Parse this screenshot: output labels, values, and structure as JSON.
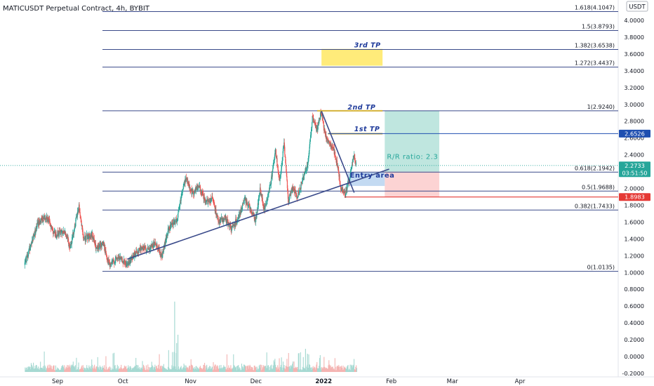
{
  "header": {
    "symbol_title": "MATICUSDT Perpetual Contract, 4h, BYBIT",
    "currency_badge": "USDT"
  },
  "colors": {
    "candle_up": "#26a69a",
    "candle_down": "#ef5350",
    "fib_line": "#3a4a8a",
    "target_label": "#1e3a9a",
    "trendline": "#3a4a8a",
    "tp_zone": "#ffeb7a",
    "gold_line": "#d4b23a",
    "profit_zone": "#bfe6df",
    "loss_zone": "#fcd3d3",
    "price_badge_current": "#26a69a",
    "price_badge_blue": "#1f4fb0",
    "price_badge_red": "#e53935"
  },
  "chart_data": {
    "type": "candlestick",
    "title": "MATICUSDT Perpetual Contract, 4h, BYBIT",
    "price_axis": {
      "ylim": [
        -0.25,
        4.2
      ],
      "ticks": [
        "4.0000",
        "3.8000",
        "3.6000",
        "3.4000",
        "3.2000",
        "3.0000",
        "2.8000",
        "2.6000",
        "2.4000",
        "2.2000",
        "2.0000",
        "1.8000",
        "1.6000",
        "1.4000",
        "1.2000",
        "1.0000",
        "0.8000",
        "0.6000",
        "0.4000",
        "0.2000",
        "0.0000",
        "-0.2000"
      ]
    },
    "time_axis": {
      "ticks": [
        {
          "label": "Sep",
          "t": 15
        },
        {
          "label": "Oct",
          "t": 45
        },
        {
          "label": "Nov",
          "t": 76
        },
        {
          "label": "Dec",
          "t": 106
        },
        {
          "label": "2022",
          "t": 137
        },
        {
          "label": "Feb",
          "t": 168
        },
        {
          "label": "Mar",
          "t": 196
        },
        {
          "label": "Apr",
          "t": 227
        }
      ]
    },
    "price_path": [
      [
        0,
        1.09
      ],
      [
        6,
        1.58
      ],
      [
        10,
        1.67
      ],
      [
        14,
        1.45
      ],
      [
        18,
        1.5
      ],
      [
        21,
        1.31
      ],
      [
        24,
        1.66
      ],
      [
        25,
        1.79
      ],
      [
        27,
        1.4
      ],
      [
        31,
        1.45
      ],
      [
        33,
        1.27
      ],
      [
        36,
        1.35
      ],
      [
        39,
        1.08
      ],
      [
        43,
        1.18
      ],
      [
        47,
        1.09
      ],
      [
        51,
        1.23
      ],
      [
        54,
        1.3
      ],
      [
        57,
        1.26
      ],
      [
        60,
        1.36
      ],
      [
        63,
        1.19
      ],
      [
        66,
        1.51
      ],
      [
        70,
        1.63
      ],
      [
        72,
        1.93
      ],
      [
        74,
        2.13
      ],
      [
        77,
        1.94
      ],
      [
        80,
        2.03
      ],
      [
        83,
        1.83
      ],
      [
        86,
        1.88
      ],
      [
        89,
        1.61
      ],
      [
        92,
        1.64
      ],
      [
        95,
        1.52
      ],
      [
        99,
        1.71
      ],
      [
        101,
        1.87
      ],
      [
        103,
        1.79
      ],
      [
        106,
        1.62
      ],
      [
        108,
        1.98
      ],
      [
        110,
        1.74
      ],
      [
        113,
        2.08
      ],
      [
        115,
        2.46
      ],
      [
        117,
        2.06
      ],
      [
        119,
        2.56
      ],
      [
        121,
        1.84
      ],
      [
        123,
        2.02
      ],
      [
        125,
        1.9
      ],
      [
        128,
        2.14
      ],
      [
        130,
        2.31
      ],
      [
        132,
        2.84
      ],
      [
        134,
        2.69
      ],
      [
        136,
        2.91
      ],
      [
        138,
        2.61
      ],
      [
        140,
        2.54
      ],
      [
        142,
        2.44
      ],
      [
        144,
        2.2
      ],
      [
        145,
        2.0
      ],
      [
        147,
        1.95
      ],
      [
        149,
        2.09
      ],
      [
        150,
        2.28
      ],
      [
        151,
        2.39
      ],
      [
        152,
        2.28
      ]
    ],
    "volume_scale_label_units": "price-axis",
    "fibonacci": [
      {
        "label": "1.618(4.1047)",
        "level": 4.1047
      },
      {
        "label": "1.5(3.8793)",
        "level": 3.8793
      },
      {
        "label": "1.382(3.6538)",
        "level": 3.6538
      },
      {
        "label": "1.272(3.4437)",
        "level": 3.4437
      },
      {
        "label": "1(2.9240)",
        "level": 2.924
      },
      {
        "label": "0.618(2.1942)",
        "level": 2.1942
      },
      {
        "label": "0.5(1.9688)",
        "level": 1.9688
      },
      {
        "label": "0.382(1.7433)",
        "level": 1.7433
      },
      {
        "label": "0(1.0135)",
        "level": 1.0135
      }
    ],
    "annotations": [
      {
        "label": "3rd TP",
        "price": 3.68
      },
      {
        "label": "2nd TP",
        "price": 2.94
      },
      {
        "label": "1st TP",
        "price": 2.68
      },
      {
        "label": "Entry area",
        "price": 2.13
      },
      {
        "label": "R/R ratio: 2.3",
        "price": 2.35
      }
    ],
    "tp3_zone": {
      "top": 3.66,
      "bottom": 3.46,
      "t_start": 136,
      "t_end": 164
    },
    "gold_lines": [
      {
        "price": 2.924,
        "t_start": 134,
        "t_end": 164
      },
      {
        "price": 2.652,
        "t_start": 139,
        "t_end": 164
      }
    ],
    "risk_reward": {
      "entry": 2.2,
      "target": 2.924,
      "stop": 1.8983,
      "t_start": 165,
      "t_end": 190
    },
    "trendlines": [
      {
        "from": [
          47,
          1.16
        ],
        "to": [
          167,
          2.23
        ]
      },
      {
        "from": [
          136,
          2.92
        ],
        "to": [
          151,
          1.95
        ]
      }
    ],
    "entry_box": {
      "t_start": 148,
      "t_end": 165,
      "top": 2.19,
      "bottom": 2.03
    },
    "stop_line": {
      "price": 1.8983,
      "t_start": 147,
      "t_end": 190
    },
    "current_price_line": 2.2733,
    "price_badges": [
      {
        "text": "2.6526",
        "price": 2.6526,
        "color_key": "price_badge_blue"
      },
      {
        "text": "2.2733",
        "sub": "03:51:50",
        "price": 2.2733,
        "color_key": "price_badge_current"
      },
      {
        "text": "1.8983",
        "price": 1.8983,
        "color_key": "price_badge_red"
      }
    ]
  }
}
